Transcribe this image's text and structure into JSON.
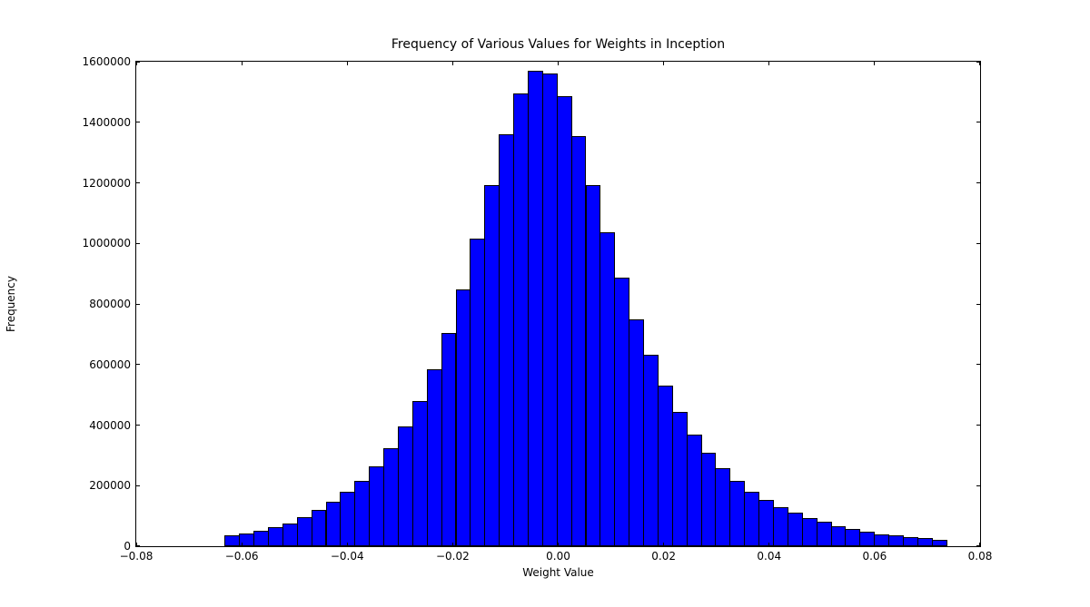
{
  "chart_data": {
    "type": "bar",
    "subtype": "histogram",
    "title": "Frequency of Various Values for Weights in Inception",
    "xlabel": "Weight Value",
    "ylabel": "Frequency",
    "xlim": [
      -0.08,
      0.08
    ],
    "ylim": [
      0,
      1600000
    ],
    "grid": false,
    "legend": "none",
    "bar_color": "#0000ff",
    "bar_edge_color": "#000000",
    "xtick_values": [
      -0.08,
      -0.06,
      -0.04,
      -0.02,
      0.0,
      0.02,
      0.04,
      0.06,
      0.08
    ],
    "xtick_labels": [
      "−0.08",
      "−0.06",
      "−0.04",
      "−0.02",
      "0.00",
      "0.02",
      "0.04",
      "0.06",
      "0.08"
    ],
    "ytick_values": [
      0,
      200000,
      400000,
      600000,
      800000,
      1000000,
      1200000,
      1400000,
      1600000
    ],
    "ytick_labels": [
      "0",
      "200000",
      "400000",
      "600000",
      "800000",
      "1000000",
      "1200000",
      "1400000",
      "1600000"
    ],
    "bins": {
      "start": -0.063243,
      "width": 0.0027364,
      "count": 50
    },
    "values": [
      35000,
      43000,
      52000,
      64000,
      76000,
      97000,
      120000,
      146000,
      180000,
      217000,
      263000,
      325000,
      397000,
      479000,
      584000,
      705000,
      848000,
      1015000,
      1193000,
      1360000,
      1495000,
      1570000,
      1562000,
      1486000,
      1353000,
      1193000,
      1036000,
      886000,
      749000,
      631000,
      529000,
      443000,
      370000,
      308000,
      257000,
      215000,
      180000,
      153000,
      130000,
      110000,
      93000,
      80000,
      67000,
      57000,
      47000,
      40000,
      37000,
      30000,
      27000,
      22000
    ]
  }
}
